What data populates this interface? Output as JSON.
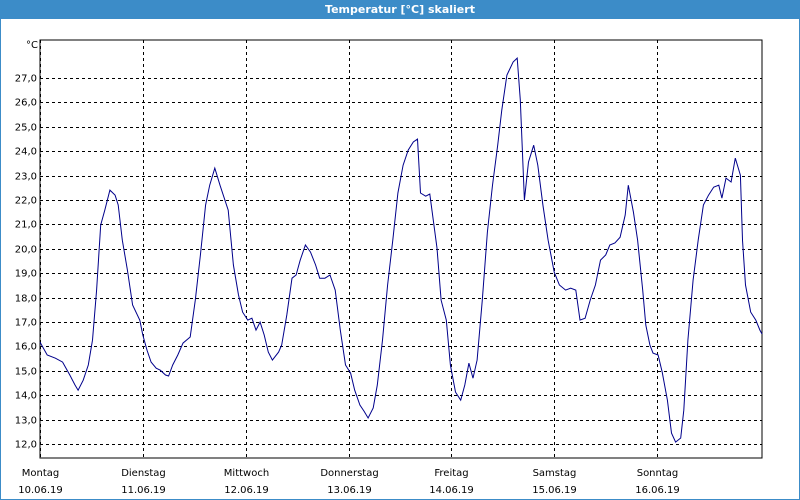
{
  "chart_data": {
    "type": "line",
    "title": "Temperatur [°C] skaliert",
    "y_unit": "°C",
    "xlim": [
      0,
      7.02
    ],
    "ylim": [
      11.43,
      28.56
    ],
    "yticks": [
      {
        "value": 12,
        "label": "12,0"
      },
      {
        "value": 13,
        "label": "13,0"
      },
      {
        "value": 14,
        "label": "14,0"
      },
      {
        "value": 15,
        "label": "15,0"
      },
      {
        "value": 16,
        "label": "16,0"
      },
      {
        "value": 17,
        "label": "17,0"
      },
      {
        "value": 18,
        "label": "18,0"
      },
      {
        "value": 19,
        "label": "19,0"
      },
      {
        "value": 20,
        "label": "20,0"
      },
      {
        "value": 21,
        "label": "21,0"
      },
      {
        "value": 22,
        "label": "22,0"
      },
      {
        "value": 23,
        "label": "23,0"
      },
      {
        "value": 24,
        "label": "24,0"
      },
      {
        "value": 25,
        "label": "25,0"
      },
      {
        "value": 26,
        "label": "26,0"
      },
      {
        "value": 27,
        "label": "27,0"
      }
    ],
    "xticks": [
      {
        "value": 0,
        "label": "Montag"
      },
      {
        "value": 1,
        "label": "Dienstag"
      },
      {
        "value": 2,
        "label": "Mittwoch"
      },
      {
        "value": 3,
        "label": "Donnerstag"
      },
      {
        "value": 4,
        "label": "Freitag"
      },
      {
        "value": 5,
        "label": "Samstag"
      },
      {
        "value": 6,
        "label": "Sonntag"
      }
    ],
    "xtick_dates": [
      "10.06.19",
      "11.06.19",
      "12.06.19",
      "13.06.19",
      "14.06.19",
      "15.06.19",
      "16.06.19"
    ],
    "grid": true,
    "series": [
      {
        "color": "#00008b",
        "x": [
          0.0,
          0.07,
          0.15,
          0.22,
          0.29,
          0.34,
          0.37,
          0.42,
          0.47,
          0.51,
          0.55,
          0.59,
          0.63,
          0.68,
          0.73,
          0.76,
          0.8,
          0.85,
          0.9,
          0.97,
          1.0,
          1.04,
          1.08,
          1.13,
          1.17,
          1.22,
          1.25,
          1.29,
          1.34,
          1.39,
          1.46,
          1.51,
          1.56,
          1.61,
          1.65,
          1.7,
          1.75,
          1.83,
          1.88,
          1.93,
          1.97,
          2.02,
          2.06,
          2.1,
          2.14,
          2.18,
          2.22,
          2.26,
          2.32,
          2.35,
          2.4,
          2.45,
          2.49,
          2.53,
          2.58,
          2.63,
          2.68,
          2.72,
          2.77,
          2.82,
          2.87,
          2.92,
          2.97,
          3.02,
          3.06,
          3.11,
          3.15,
          3.19,
          3.24,
          3.28,
          3.33,
          3.38,
          3.43,
          3.48,
          3.53,
          3.58,
          3.63,
          3.67,
          3.7,
          3.75,
          3.79,
          3.86,
          3.9,
          3.95,
          3.99,
          4.04,
          4.09,
          4.13,
          4.17,
          4.21,
          4.25,
          4.3,
          4.35,
          4.4,
          4.45,
          4.49,
          4.54,
          4.6,
          4.64,
          4.67,
          4.71,
          4.75,
          4.8,
          4.84,
          4.89,
          4.94,
          5.0,
          5.05,
          5.11,
          5.16,
          5.21,
          5.25,
          5.3,
          5.35,
          5.4,
          5.45,
          5.5,
          5.54,
          5.59,
          5.64,
          5.69,
          5.72,
          5.77,
          5.81,
          5.86,
          5.89,
          5.93,
          5.96,
          6.01,
          6.05,
          6.1,
          6.14,
          6.18,
          6.23,
          6.26,
          6.3,
          6.35,
          6.4,
          6.45,
          6.5,
          6.55,
          6.6,
          6.63,
          6.67,
          6.72,
          6.76,
          6.81,
          6.83,
          6.86,
          6.91,
          6.96,
          7.0,
          7.02
        ],
        "values": [
          16.18,
          15.65,
          15.52,
          15.36,
          14.83,
          14.42,
          14.21,
          14.62,
          15.24,
          16.26,
          18.31,
          20.98,
          21.59,
          22.41,
          22.2,
          21.8,
          20.36,
          19.13,
          17.7,
          17.08,
          16.47,
          15.85,
          15.36,
          15.11,
          15.03,
          14.83,
          14.79,
          15.24,
          15.65,
          16.14,
          16.39,
          17.9,
          19.75,
          21.8,
          22.61,
          23.31,
          22.61,
          21.59,
          19.34,
          18.11,
          17.41,
          17.08,
          17.16,
          16.67,
          17.0,
          16.47,
          15.77,
          15.44,
          15.77,
          16.06,
          17.29,
          18.8,
          18.93,
          19.54,
          20.16,
          19.87,
          19.34,
          18.8,
          18.8,
          18.93,
          18.31,
          16.67,
          15.24,
          14.91,
          14.21,
          13.6,
          13.35,
          13.07,
          13.48,
          14.42,
          16.26,
          18.52,
          20.36,
          22.29,
          23.43,
          24.05,
          24.38,
          24.5,
          22.29,
          22.16,
          22.25,
          20.03,
          17.9,
          17.08,
          15.24,
          14.13,
          13.8,
          14.42,
          15.32,
          14.7,
          15.44,
          17.9,
          20.69,
          22.61,
          24.25,
          25.69,
          27.12,
          27.66,
          27.82,
          26.1,
          22.0,
          23.56,
          24.25,
          23.43,
          21.8,
          20.36,
          19.05,
          18.52,
          18.31,
          18.39,
          18.31,
          17.08,
          17.16,
          17.9,
          18.52,
          19.54,
          19.75,
          20.16,
          20.24,
          20.48,
          21.39,
          22.61,
          21.51,
          20.36,
          18.31,
          16.88,
          16.06,
          15.73,
          15.65,
          14.95,
          13.8,
          12.45,
          12.08,
          12.25,
          13.39,
          16.26,
          18.72,
          20.36,
          21.8,
          22.2,
          22.53,
          22.61,
          22.08,
          22.9,
          22.74,
          23.72,
          23.02,
          20.36,
          18.52,
          17.41,
          17.08,
          16.67,
          16.51
        ]
      }
    ]
  }
}
